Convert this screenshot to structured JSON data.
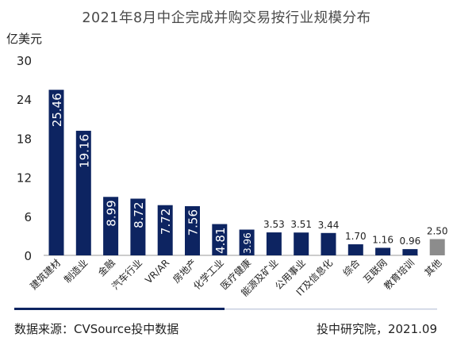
{
  "title": "2021年8月中企完成并购交易按行业规模分布",
  "unit_label": "亿美元",
  "footer": {
    "source": "数据来源：CVSource投中数据",
    "credit": "投中研究院，2021.09"
  },
  "colors": {
    "bar": "#0d2461",
    "bar_other": "#8c8c8c",
    "axis": "#999999",
    "footer_dark": "#0d2461",
    "footer_light": "#c8cfe0"
  },
  "chart_data": {
    "type": "bar",
    "title": "2021年8月中企完成并购交易按行业规模分布",
    "ylabel": "亿美元",
    "xlabel": "",
    "ylim": [
      0,
      30
    ],
    "yticks": [
      0,
      6,
      12,
      18,
      24,
      30
    ],
    "grid": false,
    "categories": [
      "建筑建材",
      "制造业",
      "金融",
      "汽车行业",
      "VR/AR",
      "房地产",
      "化学工业",
      "医疗健康",
      "能源及矿业",
      "公用事业",
      "IT及信息化",
      "综合",
      "互联网",
      "教育培训",
      "其他"
    ],
    "values": [
      25.46,
      19.16,
      8.99,
      8.72,
      7.72,
      7.56,
      4.81,
      3.96,
      3.53,
      3.51,
      3.44,
      1.7,
      1.16,
      0.96,
      2.5
    ],
    "label_values": [
      "25.46",
      "19.16",
      "8.99",
      "8.72",
      "7.72",
      "7.56",
      "4.81",
      "3.96",
      "3.53",
      "3.51",
      "3.44",
      "1.70",
      "1.16",
      "0.96",
      "2.50"
    ]
  }
}
